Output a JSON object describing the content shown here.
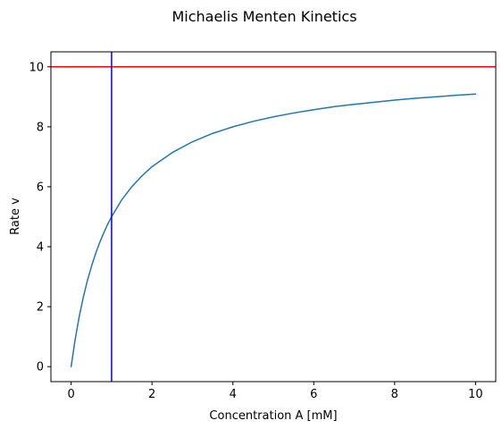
{
  "chart_data": {
    "type": "line",
    "title": "Michaelis Menten Kinetics",
    "xlabel": "Concentration A [mM]",
    "ylabel": "Rate v",
    "xlim": [
      -0.5,
      10.5
    ],
    "ylim": [
      -0.5,
      10.5
    ],
    "xticks": [
      0,
      2,
      4,
      6,
      8,
      10
    ],
    "yticks": [
      0,
      2,
      4,
      6,
      8,
      10
    ],
    "xtick_labels": [
      "0",
      "2",
      "4",
      "6",
      "8",
      "10"
    ],
    "ytick_labels": [
      "0",
      "2",
      "4",
      "6",
      "8",
      "10"
    ],
    "grid": false,
    "legend": "none",
    "series": [
      {
        "color": "#1f77b4",
        "x": [
          0,
          0.1,
          0.2,
          0.3,
          0.4,
          0.5,
          0.6,
          0.7,
          0.8,
          0.9,
          1.0,
          1.25,
          1.5,
          1.75,
          2.0,
          2.5,
          3.0,
          3.5,
          4.0,
          4.5,
          5.0,
          5.5,
          6.0,
          6.5,
          7.0,
          7.5,
          8.0,
          8.5,
          9.0,
          9.5,
          10.0
        ],
        "y": [
          0,
          0.91,
          1.67,
          2.31,
          2.86,
          3.33,
          3.75,
          4.12,
          4.44,
          4.74,
          5.0,
          5.56,
          6.0,
          6.36,
          6.67,
          7.14,
          7.5,
          7.78,
          8.0,
          8.18,
          8.33,
          8.46,
          8.57,
          8.67,
          8.75,
          8.82,
          8.89,
          8.95,
          9.0,
          9.05,
          9.09
        ]
      }
    ],
    "reference_lines": [
      {
        "orientation": "horizontal",
        "value": 10,
        "color": "#ff0000"
      },
      {
        "orientation": "vertical",
        "value": 1,
        "color": "#0000ff"
      }
    ]
  }
}
